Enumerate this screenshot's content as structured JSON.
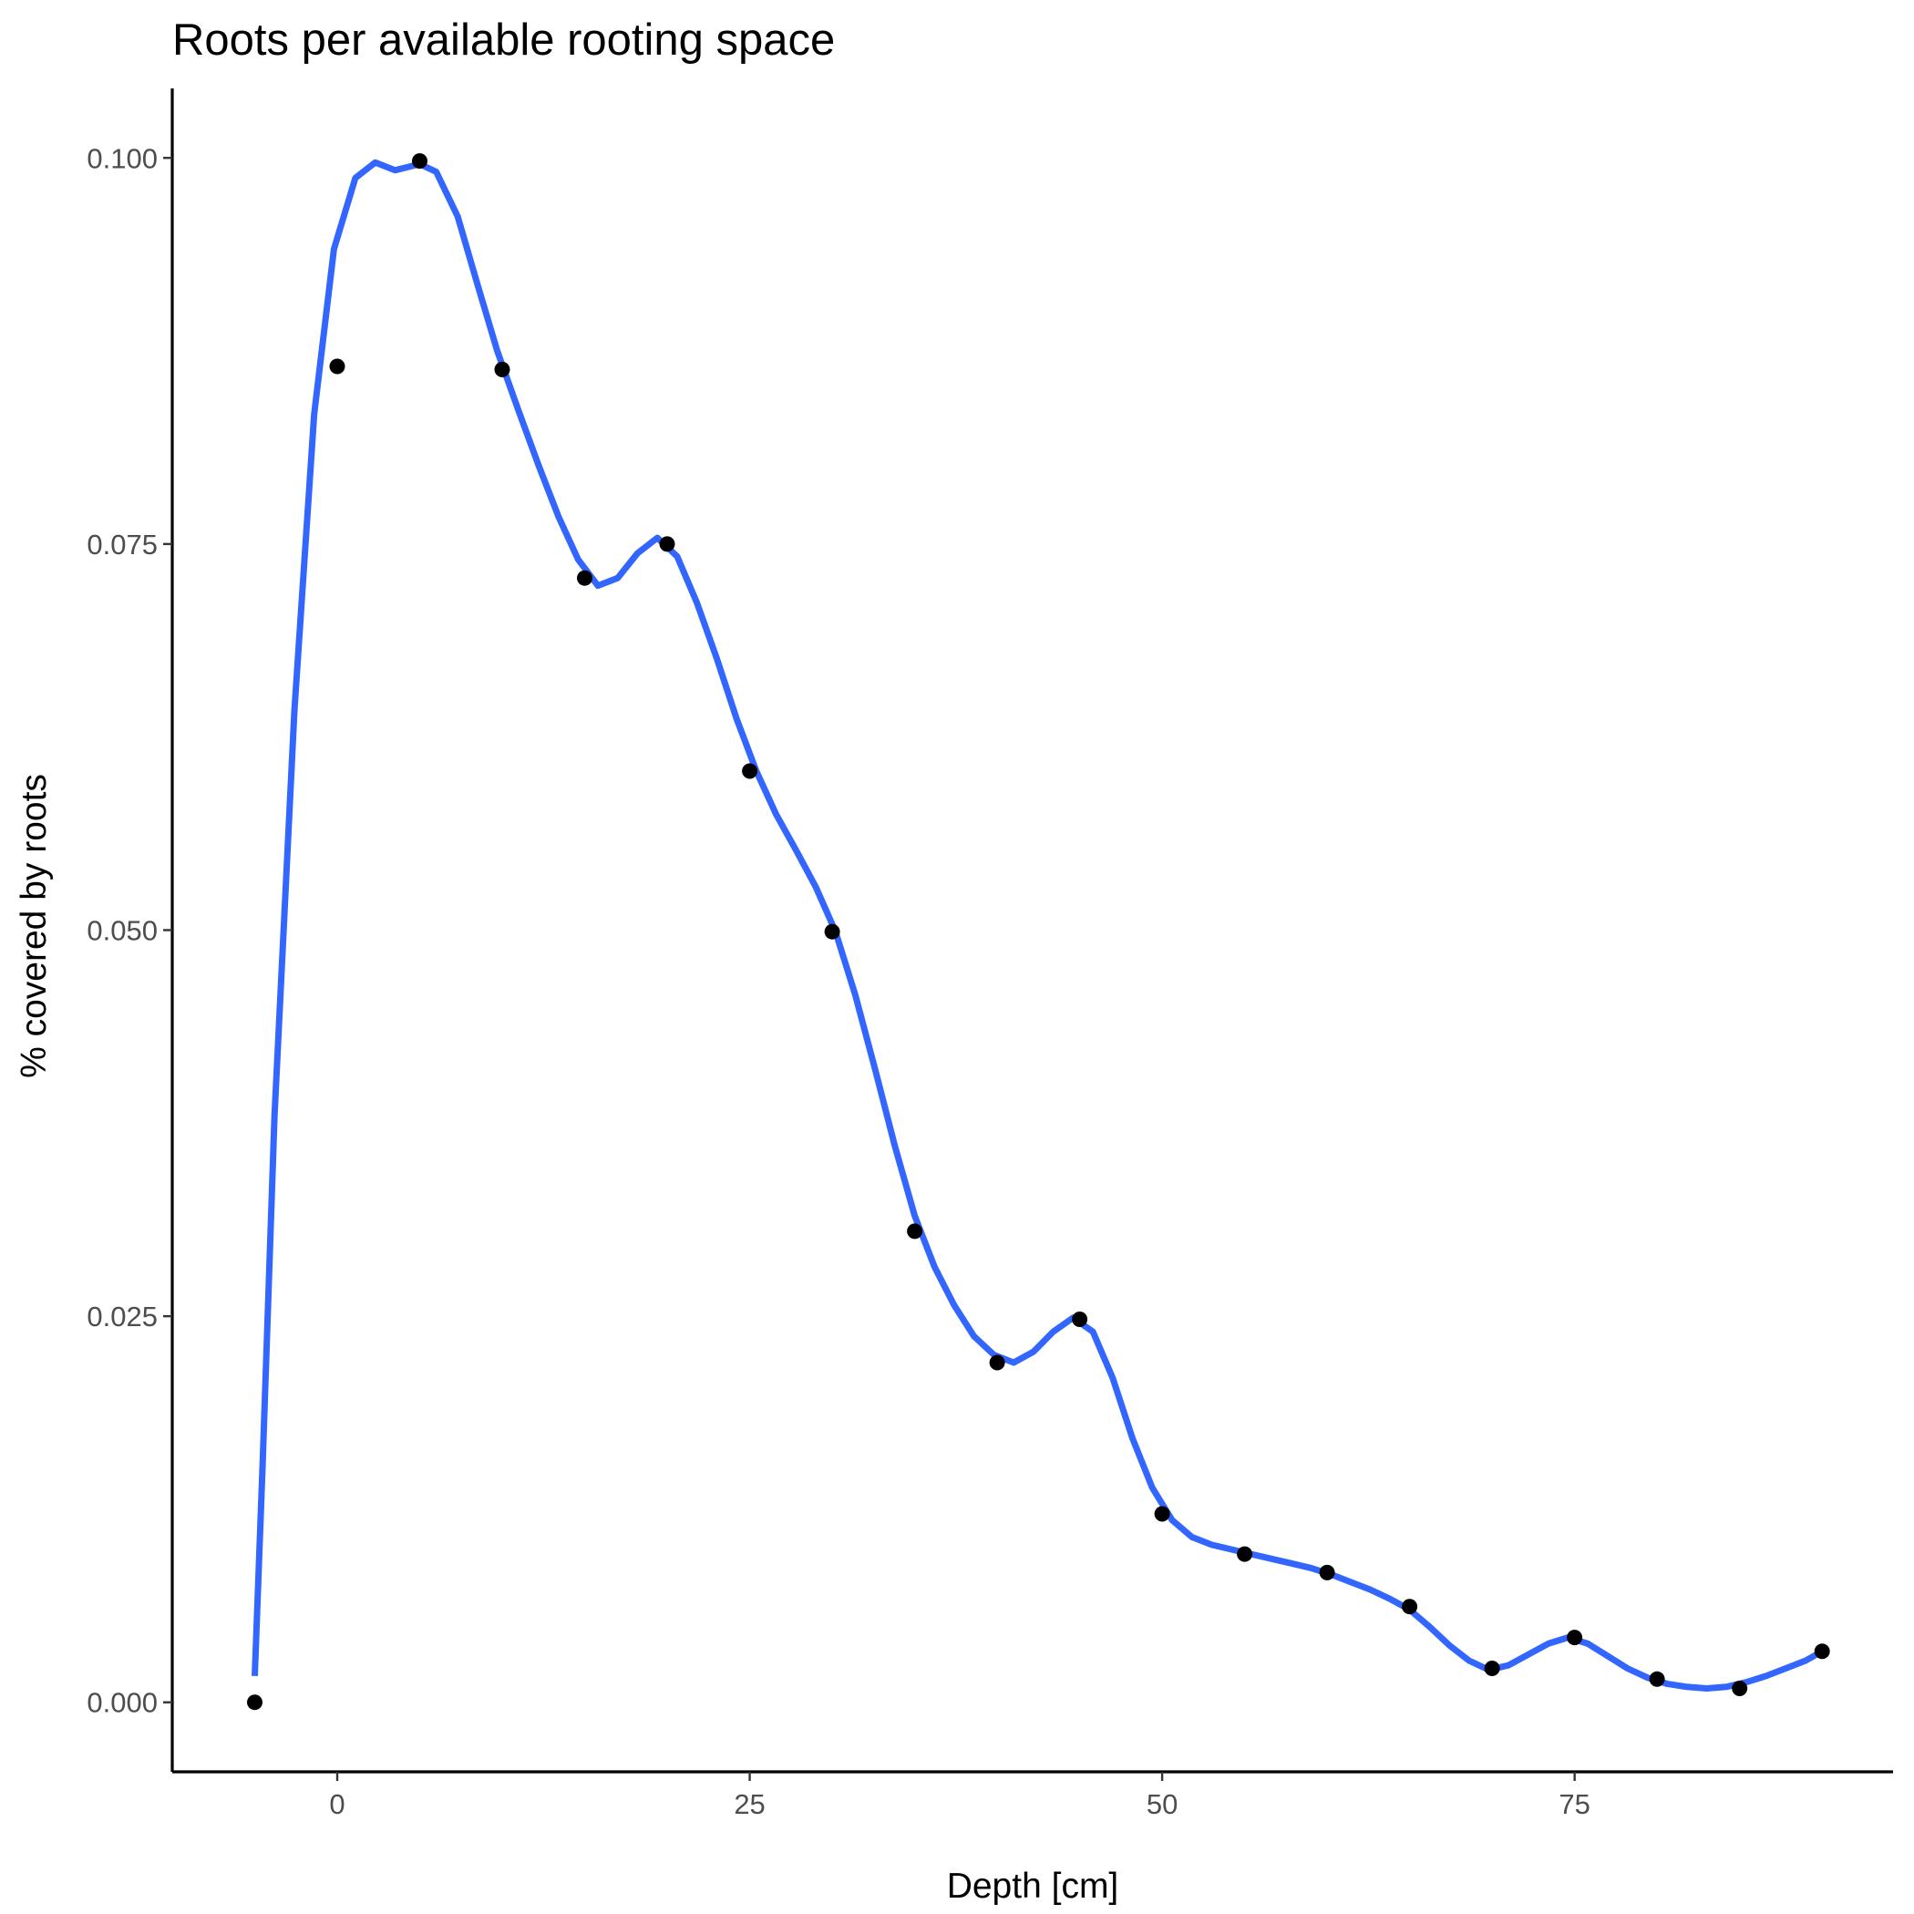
{
  "chart_data": {
    "type": "scatter",
    "title": "Roots per available rooting space",
    "xlabel": "Depth [cm]",
    "ylabel": "% covered by roots",
    "xlim": [
      -10,
      94.3
    ],
    "ylim": [
      -0.0045,
      0.1045
    ],
    "x_ticks": [
      0,
      25,
      50,
      75
    ],
    "x_tick_labels": [
      "0",
      "25",
      "50",
      "75"
    ],
    "y_ticks": [
      0.0,
      0.025,
      0.05,
      0.075,
      0.1
    ],
    "y_tick_labels": [
      "0.000",
      "0.025",
      "0.050",
      "0.075",
      "0.100"
    ],
    "grid": false,
    "legend": "none",
    "colors": {
      "points": "#000000",
      "line": "#3366ff"
    },
    "series": [
      {
        "kind": "points",
        "x": [
          -5,
          0,
          5,
          10,
          15,
          20,
          25,
          30,
          35,
          40,
          45,
          50,
          55,
          60,
          65,
          70,
          75,
          80,
          85,
          90
        ],
        "y": [
          0.0,
          0.0865,
          0.0998,
          0.0863,
          0.0728,
          0.075,
          0.0603,
          0.0499,
          0.0305,
          0.022,
          0.0248,
          0.0122,
          0.0096,
          0.0084,
          0.0062,
          0.0022,
          0.0042,
          0.0015,
          0.0009,
          0.0033
        ]
      },
      {
        "kind": "smooth-line",
        "x": [
          -5,
          -4.52,
          -3.8,
          -2.6,
          -1.4,
          -0.2,
          1.1,
          2.3,
          3.5,
          5,
          6,
          7.3,
          8.5,
          9.7,
          11,
          12.2,
          13.4,
          14.6,
          15.8,
          17,
          18.2,
          19.4,
          20.6,
          21.8,
          23,
          24.2,
          25.4,
          26.6,
          27.8,
          29,
          30.2,
          31.4,
          32.6,
          33.8,
          35,
          36.2,
          37.4,
          38.6,
          39.8,
          41,
          42.2,
          43.4,
          44.6,
          45.8,
          47,
          48.2,
          49.4,
          50.6,
          51.8,
          53,
          54.2,
          55.4,
          56.6,
          57.8,
          59,
          60.2,
          61.4,
          62.6,
          63.8,
          65,
          66.2,
          67.4,
          68.6,
          69.8,
          71,
          72.2,
          73.4,
          74.6,
          75.8,
          77,
          78.2,
          79.4,
          80.6,
          81.8,
          83,
          84.2,
          85.4,
          86.6,
          87.8,
          89,
          90
        ],
        "y": [
          0.0017,
          0.0155,
          0.038,
          0.0642,
          0.0834,
          0.0941,
          0.0987,
          0.0997,
          0.0992,
          0.0996,
          0.0991,
          0.0962,
          0.0918,
          0.0875,
          0.0836,
          0.0801,
          0.0768,
          0.074,
          0.0723,
          0.0728,
          0.0744,
          0.0754,
          0.0742,
          0.0712,
          0.0676,
          0.0637,
          0.0603,
          0.0575,
          0.0552,
          0.0528,
          0.0499,
          0.0458,
          0.041,
          0.036,
          0.0315,
          0.0282,
          0.0257,
          0.0237,
          0.0225,
          0.022,
          0.0227,
          0.024,
          0.0249,
          0.024,
          0.021,
          0.0171,
          0.0139,
          0.0118,
          0.0107,
          0.0102,
          0.0099,
          0.0096,
          0.0093,
          0.009,
          0.0087,
          0.0083,
          0.0078,
          0.0073,
          0.0067,
          0.006,
          0.0049,
          0.0037,
          0.0027,
          0.0021,
          0.0024,
          0.0031,
          0.0038,
          0.0042,
          0.0038,
          0.003,
          0.0022,
          0.0016,
          0.0012,
          0.001,
          0.0009,
          0.001,
          0.0013,
          0.0017,
          0.0022,
          0.0027,
          0.0033
        ]
      }
    ]
  }
}
